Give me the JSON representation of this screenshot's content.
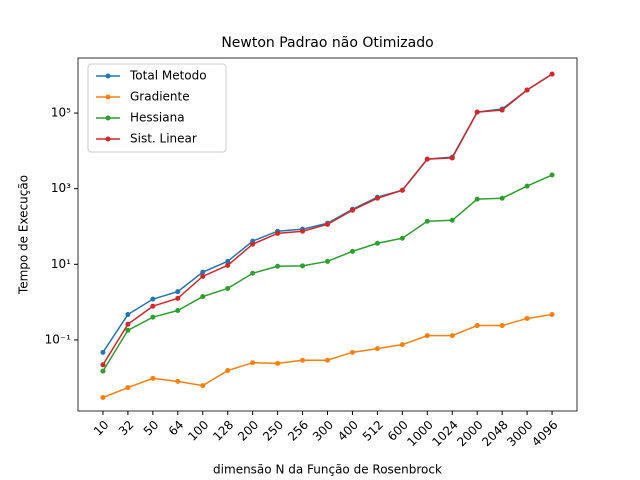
{
  "chart_data": {
    "type": "line",
    "title": "Newton Padrao não Otimizado",
    "x_label": "dimensão N da Função de Rosenbrock",
    "y_label": "Tempo de Execução",
    "categories": [
      "10",
      "32",
      "50",
      "64",
      "100",
      "128",
      "200",
      "250",
      "256",
      "300",
      "400",
      "512",
      "600",
      "1000",
      "1024",
      "2000",
      "2048",
      "3000",
      "4096"
    ],
    "y_scale": "log",
    "ylim": [
      0.00132,
      2860000
    ],
    "yticks": [
      {
        "value": 0.1,
        "label": "10⁻¹"
      },
      {
        "value": 10,
        "label": "10¹"
      },
      {
        "value": 1000,
        "label": "10³"
      },
      {
        "value": 100000,
        "label": "10⁵"
      }
    ],
    "legend": "upper left",
    "grid": false,
    "series": [
      {
        "name": "Total Metodo",
        "color": "#1f77b4",
        "values": [
          0.047,
          0.47,
          1.2,
          1.9,
          6.2,
          12,
          41,
          75,
          85,
          122,
          286,
          596,
          910,
          6050,
          6820,
          106000,
          128000,
          407000,
          1070000
        ]
      },
      {
        "name": "Gradiente",
        "color": "#ff7f0e",
        "values": [
          0.003,
          0.0055,
          0.0096,
          0.008,
          0.0062,
          0.0155,
          0.025,
          0.024,
          0.029,
          0.029,
          0.047,
          0.059,
          0.075,
          0.13,
          0.13,
          0.24,
          0.24,
          0.37,
          0.47
        ]
      },
      {
        "name": "Hessiana",
        "color": "#2ca02c",
        "values": [
          0.015,
          0.18,
          0.4,
          0.6,
          1.4,
          2.3,
          5.8,
          8.9,
          9.1,
          12,
          22,
          36,
          49,
          138,
          146,
          530,
          560,
          1170,
          2300
        ]
      },
      {
        "name": "Sist. Linear",
        "color": "#d62728",
        "values": [
          0.022,
          0.26,
          0.78,
          1.26,
          4.8,
          9.4,
          34,
          66,
          75,
          114,
          270,
          560,
          910,
          6050,
          6500,
          106000,
          120000,
          407000,
          1070000
        ]
      }
    ]
  }
}
